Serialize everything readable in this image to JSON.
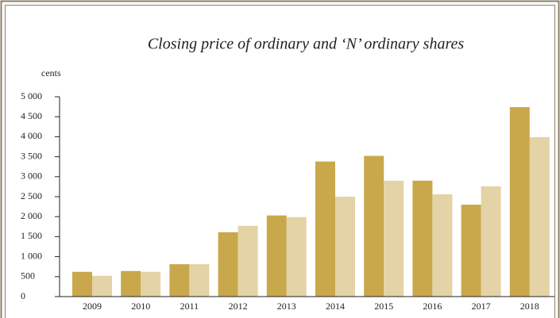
{
  "chart_data": {
    "type": "bar",
    "title": "Closing price of ordinary and ‘N’ ordinary shares",
    "y_label": "cents",
    "categories": [
      "2009",
      "2010",
      "2011",
      "2012",
      "2013",
      "2014",
      "2015",
      "2016",
      "2017",
      "2018"
    ],
    "series": [
      {
        "color": "#c8a84b",
        "values": [
          620,
          640,
          810,
          1610,
          2030,
          3380,
          3520,
          2900,
          2300,
          4740
        ]
      },
      {
        "color": "#e4d3a6",
        "values": [
          520,
          620,
          810,
          1770,
          1990,
          2500,
          2900,
          2560,
          2760,
          3990
        ]
      }
    ],
    "ylim": [
      0,
      5000
    ],
    "yticks": [
      0,
      500,
      {
        "value": 1000,
        "label": "1 000"
      },
      {
        "value": 1500,
        "label": "1 500"
      },
      {
        "value": 2000,
        "label": "2 000"
      },
      {
        "value": 2500,
        "label": "2 500"
      },
      {
        "value": 3000,
        "label": "3 000"
      },
      {
        "value": 3500,
        "label": "3 500"
      },
      {
        "value": 4000,
        "label": "4 000"
      },
      {
        "value": 4500,
        "label": "4 500"
      },
      {
        "value": 5000,
        "label": "5 000"
      }
    ]
  }
}
